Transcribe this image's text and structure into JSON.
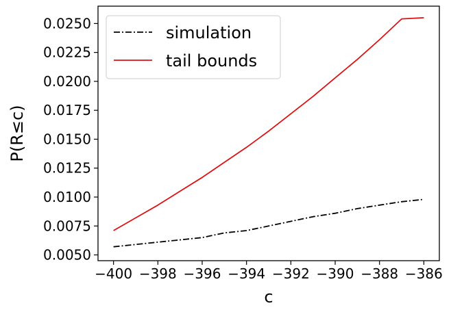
{
  "chart_data": {
    "type": "line",
    "title": "",
    "xlabel": "c",
    "ylabel": "P(R≤c)",
    "xlim": [
      -400.7,
      -385.3
    ],
    "ylim": [
      0.0045,
      0.0265
    ],
    "grid": false,
    "legend_placement": "top-left",
    "x_ticks": [
      -400,
      -398,
      -396,
      -394,
      -392,
      -390,
      -388,
      -386
    ],
    "x_tick_labels": [
      "−400",
      "−398",
      "−396",
      "−394",
      "−392",
      "−390",
      "−388",
      "−386"
    ],
    "y_ticks": [
      0.005,
      0.0075,
      0.01,
      0.0125,
      0.015,
      0.0175,
      0.02,
      0.0225,
      0.025
    ],
    "y_tick_labels": [
      "0.0050",
      "0.0075",
      "0.0100",
      "0.0125",
      "0.0150",
      "0.0175",
      "0.0200",
      "0.0225",
      "0.0250"
    ],
    "x": [
      -400,
      -399,
      -398,
      -397,
      -396,
      -395,
      -394,
      -393,
      -392,
      -391,
      -390,
      -389,
      -388,
      -387,
      -386
    ],
    "series": [
      {
        "name": "simulation",
        "color": "#000000",
        "style": "dashdot",
        "values": [
          0.0057,
          0.0059,
          0.0061,
          0.0063,
          0.0065,
          0.0069,
          0.0071,
          0.0075,
          0.0079,
          0.0083,
          0.0086,
          0.009,
          0.0093,
          0.0096,
          0.0098
        ]
      },
      {
        "name": "tail bounds",
        "color": "#dd1111",
        "style": "solid",
        "values": [
          0.0071,
          0.0082,
          0.0093,
          0.0105,
          0.0117,
          0.013,
          0.0143,
          0.0157,
          0.0172,
          0.0187,
          0.0203,
          0.0219,
          0.0236,
          0.0254,
          0.0255
        ]
      }
    ]
  }
}
